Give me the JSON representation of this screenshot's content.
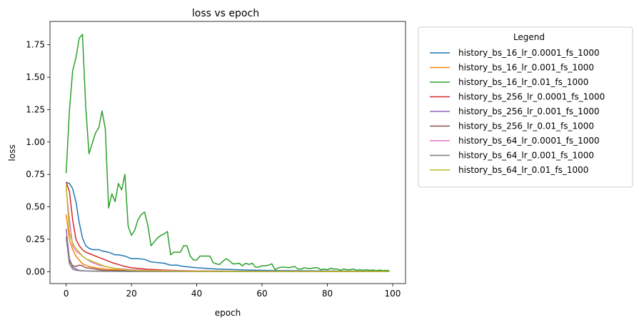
{
  "chart_data": {
    "type": "line",
    "title": "loss vs epoch",
    "xlabel": "epoch",
    "ylabel": "loss",
    "xlim": [
      -4.95,
      103.95
    ],
    "ylim": [
      -0.092,
      1.93
    ],
    "xticks": [
      0,
      20,
      40,
      60,
      80,
      100
    ],
    "xtick_labels": [
      "0",
      "20",
      "40",
      "60",
      "80",
      "100"
    ],
    "yticks": [
      0,
      0.25,
      0.5,
      0.75,
      1.0,
      1.25,
      1.5,
      1.75
    ],
    "ytick_labels": [
      "0.00",
      "0.25",
      "0.50",
      "0.75",
      "1.00",
      "1.25",
      "1.50",
      "1.75"
    ],
    "grid": false,
    "legend": {
      "title": "Legend",
      "placement": "outside-right"
    },
    "series": [
      {
        "name": "history_bs_16_lr_0.0001_fs_1000",
        "color": "#1f77b4",
        "points": [
          [
            0,
            0.69
          ],
          [
            1,
            0.68
          ],
          [
            2,
            0.64
          ],
          [
            3,
            0.54
          ],
          [
            4,
            0.38
          ],
          [
            5,
            0.26
          ],
          [
            6,
            0.2
          ],
          [
            7,
            0.18
          ],
          [
            8,
            0.17
          ],
          [
            9,
            0.17
          ],
          [
            10,
            0.17
          ],
          [
            11,
            0.16
          ],
          [
            12,
            0.155
          ],
          [
            13,
            0.15
          ],
          [
            14,
            0.14
          ],
          [
            15,
            0.13
          ],
          [
            16,
            0.13
          ],
          [
            17,
            0.125
          ],
          [
            18,
            0.12
          ],
          [
            19,
            0.11
          ],
          [
            20,
            0.1
          ],
          [
            22,
            0.1
          ],
          [
            24,
            0.095
          ],
          [
            26,
            0.075
          ],
          [
            28,
            0.07
          ],
          [
            30,
            0.065
          ],
          [
            32,
            0.05
          ],
          [
            34,
            0.05
          ],
          [
            36,
            0.04
          ],
          [
            38,
            0.035
          ],
          [
            40,
            0.03
          ],
          [
            43,
            0.025
          ],
          [
            46,
            0.02
          ],
          [
            50,
            0.017
          ],
          [
            55,
            0.013
          ],
          [
            60,
            0.01
          ],
          [
            65,
            0.008
          ],
          [
            70,
            0.007
          ],
          [
            80,
            0.005
          ],
          [
            90,
            0.004
          ],
          [
            99,
            0.003
          ]
        ]
      },
      {
        "name": "history_bs_16_lr_0.001_fs_1000",
        "color": "#ff7f0e",
        "points": [
          [
            0,
            0.44
          ],
          [
            1,
            0.25
          ],
          [
            2,
            0.17
          ],
          [
            3,
            0.12
          ],
          [
            4,
            0.09
          ],
          [
            5,
            0.06
          ],
          [
            6,
            0.05
          ],
          [
            7,
            0.04
          ],
          [
            8,
            0.035
          ],
          [
            10,
            0.025
          ],
          [
            12,
            0.02
          ],
          [
            15,
            0.015
          ],
          [
            20,
            0.01
          ],
          [
            25,
            0.008
          ],
          [
            30,
            0.006
          ],
          [
            40,
            0.004
          ],
          [
            50,
            0.003
          ],
          [
            60,
            0.002
          ],
          [
            80,
            0.0015
          ],
          [
            99,
            0.001
          ]
        ]
      },
      {
        "name": "history_bs_16_lr_0.01_fs_1000",
        "color": "#2ca02c",
        "points": [
          [
            0,
            0.76
          ],
          [
            1,
            1.24
          ],
          [
            2,
            1.55
          ],
          [
            3,
            1.65
          ],
          [
            4,
            1.8
          ],
          [
            5,
            1.83
          ],
          [
            6,
            1.27
          ],
          [
            7,
            0.91
          ],
          [
            8,
            0.99
          ],
          [
            9,
            1.07
          ],
          [
            10,
            1.11
          ],
          [
            11,
            1.24
          ],
          [
            12,
            1.1
          ],
          [
            13,
            0.49
          ],
          [
            14,
            0.6
          ],
          [
            15,
            0.54
          ],
          [
            16,
            0.68
          ],
          [
            17,
            0.63
          ],
          [
            18,
            0.75
          ],
          [
            19,
            0.35
          ],
          [
            20,
            0.28
          ],
          [
            21,
            0.32
          ],
          [
            22,
            0.4
          ],
          [
            23,
            0.44
          ],
          [
            24,
            0.46
          ],
          [
            25,
            0.36
          ],
          [
            26,
            0.2
          ],
          [
            27,
            0.23
          ],
          [
            28,
            0.26
          ],
          [
            29,
            0.28
          ],
          [
            30,
            0.29
          ],
          [
            31,
            0.31
          ],
          [
            32,
            0.13
          ],
          [
            33,
            0.15
          ],
          [
            34,
            0.15
          ],
          [
            35,
            0.15
          ],
          [
            36,
            0.2
          ],
          [
            37,
            0.2
          ],
          [
            38,
            0.12
          ],
          [
            39,
            0.09
          ],
          [
            40,
            0.09
          ],
          [
            41,
            0.12
          ],
          [
            42,
            0.12
          ],
          [
            43,
            0.12
          ],
          [
            44,
            0.12
          ],
          [
            45,
            0.07
          ],
          [
            46,
            0.06
          ],
          [
            47,
            0.055
          ],
          [
            48,
            0.08
          ],
          [
            49,
            0.1
          ],
          [
            50,
            0.085
          ],
          [
            51,
            0.06
          ],
          [
            52,
            0.06
          ],
          [
            53,
            0.065
          ],
          [
            54,
            0.045
          ],
          [
            55,
            0.065
          ],
          [
            56,
            0.055
          ],
          [
            57,
            0.065
          ],
          [
            58,
            0.035
          ],
          [
            59,
            0.035
          ],
          [
            60,
            0.045
          ],
          [
            61,
            0.045
          ],
          [
            62,
            0.05
          ],
          [
            63,
            0.06
          ],
          [
            64,
            0.015
          ],
          [
            65,
            0.03
          ],
          [
            66,
            0.035
          ],
          [
            67,
            0.035
          ],
          [
            68,
            0.03
          ],
          [
            69,
            0.035
          ],
          [
            70,
            0.04
          ],
          [
            71,
            0.02
          ],
          [
            72,
            0.02
          ],
          [
            73,
            0.03
          ],
          [
            74,
            0.025
          ],
          [
            75,
            0.025
          ],
          [
            76,
            0.03
          ],
          [
            77,
            0.03
          ],
          [
            78,
            0.015
          ],
          [
            79,
            0.02
          ],
          [
            80,
            0.015
          ],
          [
            81,
            0.025
          ],
          [
            82,
            0.02
          ],
          [
            83,
            0.02
          ],
          [
            84,
            0.01
          ],
          [
            85,
            0.02
          ],
          [
            86,
            0.015
          ],
          [
            87,
            0.015
          ],
          [
            88,
            0.02
          ],
          [
            89,
            0.01
          ],
          [
            90,
            0.015
          ],
          [
            91,
            0.01
          ],
          [
            92,
            0.015
          ],
          [
            93,
            0.01
          ],
          [
            94,
            0.012
          ],
          [
            95,
            0.008
          ],
          [
            96,
            0.012
          ],
          [
            97,
            0.008
          ],
          [
            98,
            0.01
          ],
          [
            99,
            0.008
          ]
        ]
      },
      {
        "name": "history_bs_256_lr_0.0001_fs_1000",
        "color": "#d62728",
        "points": [
          [
            0,
            0.69
          ],
          [
            1,
            0.62
          ],
          [
            2,
            0.4
          ],
          [
            3,
            0.25
          ],
          [
            4,
            0.2
          ],
          [
            5,
            0.17
          ],
          [
            6,
            0.15
          ],
          [
            8,
            0.13
          ],
          [
            10,
            0.11
          ],
          [
            12,
            0.09
          ],
          [
            14,
            0.07
          ],
          [
            16,
            0.055
          ],
          [
            18,
            0.04
          ],
          [
            20,
            0.03
          ],
          [
            22,
            0.025
          ],
          [
            25,
            0.018
          ],
          [
            30,
            0.012
          ],
          [
            35,
            0.008
          ],
          [
            40,
            0.006
          ],
          [
            50,
            0.004
          ],
          [
            60,
            0.003
          ],
          [
            70,
            0.002
          ],
          [
            85,
            0.0015
          ],
          [
            99,
            0.001
          ]
        ]
      },
      {
        "name": "history_bs_256_lr_0.001_fs_1000",
        "color": "#9467bd",
        "points": [
          [
            0,
            0.33
          ],
          [
            1,
            0.1
          ],
          [
            2,
            0.035
          ],
          [
            3,
            0.02
          ],
          [
            4,
            0.01
          ],
          [
            6,
            0.006
          ],
          [
            10,
            0.004
          ],
          [
            20,
            0.002
          ],
          [
            40,
            0.001
          ],
          [
            99,
            0.0005
          ]
        ]
      },
      {
        "name": "history_bs_256_lr_0.01_fs_1000",
        "color": "#8c564b",
        "points": [
          [
            0,
            0.27
          ],
          [
            1,
            0.08
          ],
          [
            2,
            0.045
          ],
          [
            3,
            0.04
          ],
          [
            4,
            0.05
          ],
          [
            5,
            0.045
          ],
          [
            6,
            0.03
          ],
          [
            8,
            0.025
          ],
          [
            10,
            0.015
          ],
          [
            12,
            0.01
          ],
          [
            15,
            0.008
          ],
          [
            20,
            0.005
          ],
          [
            30,
            0.003
          ],
          [
            50,
            0.002
          ],
          [
            99,
            0.001
          ]
        ]
      },
      {
        "name": "history_bs_64_lr_0.0001_fs_1000",
        "color": "#e377c2",
        "points": [
          [
            0,
            0.64
          ],
          [
            1,
            0.4
          ],
          [
            2,
            0.2
          ],
          [
            3,
            0.16
          ],
          [
            4,
            0.14
          ],
          [
            5,
            0.12
          ],
          [
            6,
            0.1
          ],
          [
            8,
            0.07
          ],
          [
            10,
            0.05
          ],
          [
            12,
            0.04
          ],
          [
            15,
            0.025
          ],
          [
            20,
            0.015
          ],
          [
            25,
            0.01
          ],
          [
            30,
            0.008
          ],
          [
            40,
            0.005
          ],
          [
            50,
            0.003
          ],
          [
            70,
            0.002
          ],
          [
            99,
            0.001
          ]
        ]
      },
      {
        "name": "history_bs_64_lr_0.001_fs_1000",
        "color": "#7f7f7f",
        "points": [
          [
            0,
            0.27
          ],
          [
            1,
            0.06
          ],
          [
            2,
            0.02
          ],
          [
            3,
            0.01
          ],
          [
            5,
            0.006
          ],
          [
            10,
            0.003
          ],
          [
            20,
            0.002
          ],
          [
            50,
            0.001
          ],
          [
            99,
            0.0005
          ]
        ]
      },
      {
        "name": "history_bs_64_lr_0.01_fs_1000",
        "color": "#bcbd22",
        "points": [
          [
            0,
            0.67
          ],
          [
            1,
            0.3
          ],
          [
            2,
            0.22
          ],
          [
            3,
            0.18
          ],
          [
            4,
            0.15
          ],
          [
            5,
            0.12
          ],
          [
            6,
            0.1
          ],
          [
            7,
            0.09
          ],
          [
            8,
            0.08
          ],
          [
            9,
            0.07
          ],
          [
            10,
            0.06
          ],
          [
            12,
            0.04
          ],
          [
            14,
            0.03
          ],
          [
            16,
            0.02
          ],
          [
            18,
            0.015
          ],
          [
            20,
            0.01
          ],
          [
            25,
            0.007
          ],
          [
            30,
            0.005
          ],
          [
            40,
            0.003
          ],
          [
            60,
            0.002
          ],
          [
            99,
            0.001
          ]
        ]
      }
    ]
  }
}
